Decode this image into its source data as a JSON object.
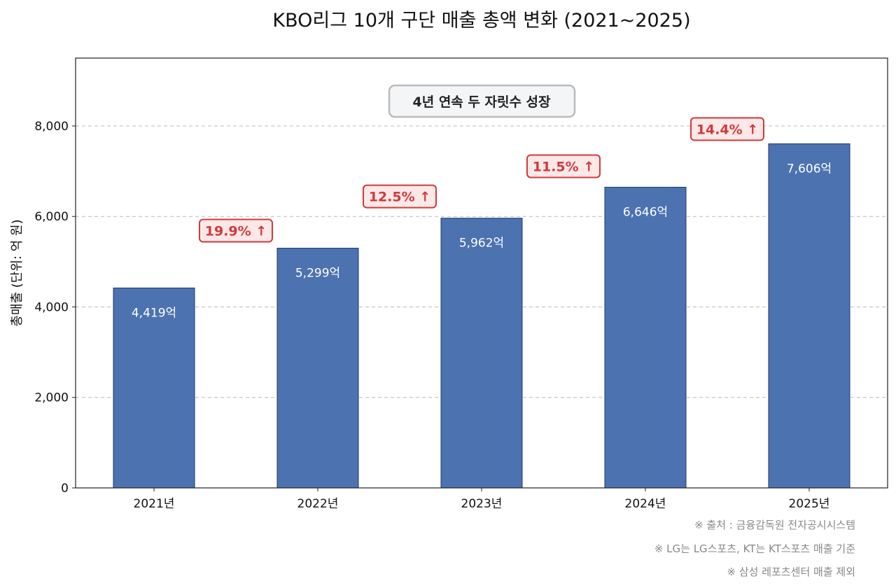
{
  "chart_data": {
    "type": "bar",
    "title": "KBO리그 10개 구단 매출 총액 변화 (2021~2025)",
    "xlabel": "",
    "ylabel": "총매출 (단위: 억 원)",
    "categories": [
      "2021년",
      "2022년",
      "2023년",
      "2024년",
      "2025년"
    ],
    "values": [
      4419,
      5299,
      5962,
      6646,
      7606
    ],
    "data_labels": [
      "4,419억",
      "5,299억",
      "5,962억",
      "6,646억",
      "7,606억"
    ],
    "growth_labels": [
      "19.9% ↑",
      "12.5% ↑",
      "11.5% ↑",
      "14.4% ↑"
    ],
    "ylim": [
      0,
      9500
    ],
    "yticks": [
      0,
      2000,
      4000,
      6000,
      8000
    ],
    "ytick_labels": [
      "0",
      "2,000",
      "4,000",
      "6,000",
      "8,000"
    ],
    "grid": "y-dashed",
    "annotation": "4년 연속 두 자릿수 성장",
    "bar_color": "#4c72b0",
    "growth_color": "#d03a3a"
  },
  "footnotes": [
    "※ 출처 : 금융감독원 전자공시시스템",
    "※ LG는 LG스포츠, KT는 KT스포츠 매출 기준",
    "※ 삼성 레포츠센터 매출 제외"
  ]
}
